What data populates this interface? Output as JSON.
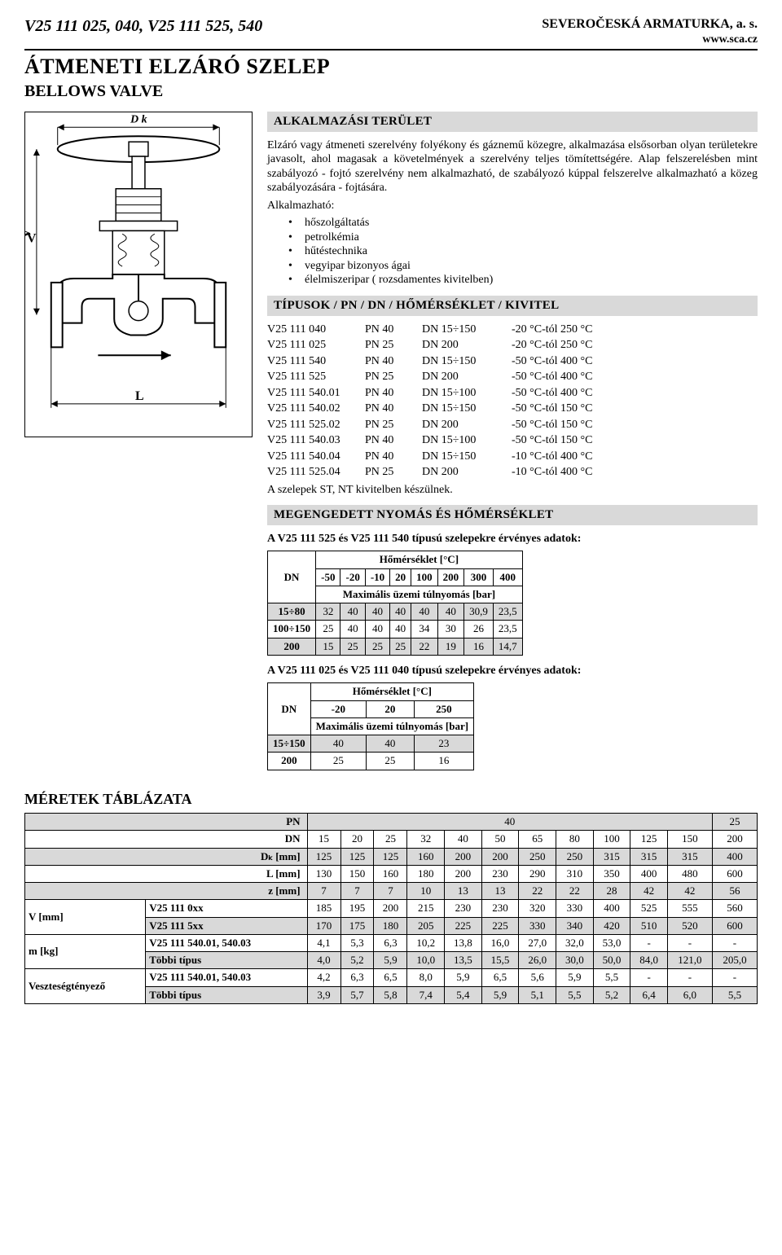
{
  "header": {
    "model": "V25 111 025, 040, V25 111 525, 540",
    "company": "SEVEROČESKÁ ARMATURKA, a. s.",
    "url": "www.sca.cz",
    "title_hu": "ÁTMENETI ELZÁRÓ SZELEP",
    "title_en": "BELLOWS VALVE"
  },
  "diagram": {
    "labels": {
      "dk": "D k",
      "v": "V",
      "l": "L"
    }
  },
  "app_area": {
    "heading": "ALKALMAZÁSI TERÜLET",
    "para": "Elzáró vagy átmeneti szerelvény folyékony és gáznemű közegre, alkalmazása elsősorban olyan területekre javasolt, ahol magasak a követelmények a szerelvény teljes tömítettségére. Alap felszerelésben mint szabályozó - fojtó szerelvény nem alkalmazható, de szabályozó kúppal felszerelve alkalmazható a közeg szabályozására - fojtására.",
    "list_intro": "Alkalmazható:",
    "bullets": [
      "hőszolgáltatás",
      "petrolkémia",
      "hűtéstechnika",
      "vegyipar bizonyos ágai",
      "élelmiszeripar ( rozsdamentes kivitelben)"
    ]
  },
  "types": {
    "heading": "TÍPUSOK / PN / DN / HŐMÉRSÉKLET / KIVITEL",
    "rows": [
      [
        "V25 111 040",
        "PN  40",
        "DN 15÷150",
        "-20 °C-tól 250 °C"
      ],
      [
        "V25 111 025",
        "PN  25",
        "DN 200",
        "-20 °C-tól 250 °C"
      ],
      [
        "V25 111 540",
        "PN  40",
        "DN 15÷150",
        "-50 °C-tól 400 °C"
      ],
      [
        "V25 111 525",
        "PN  25",
        "DN 200",
        "-50 °C-tól 400 °C"
      ],
      [
        "V25 111 540.01",
        "PN  40",
        "DN 15÷100",
        "-50 °C-tól 400 °C"
      ],
      [
        "V25 111 540.02",
        "PN  40",
        "DN 15÷150",
        "-50 °C-tól 150 °C"
      ],
      [
        "V25 111 525.02",
        "PN  25",
        "DN 200",
        "-50 °C-tól 150 °C"
      ],
      [
        "V25 111 540.03",
        "PN  40",
        "DN 15÷100",
        "-50 °C-tól 150 °C"
      ],
      [
        "V25 111 540.04",
        "PN  40",
        "DN 15÷150",
        "-10 °C-tól 400 °C"
      ],
      [
        "V25 111 525.04",
        "PN  25",
        "DN 200",
        "-10 °C-tól 400 °C"
      ]
    ],
    "note": "A szelepek ST, NT kivitelben készülnek."
  },
  "pressure": {
    "heading": "MEGENGEDETT NYOMÁS ÉS HŐMÉRSÉKLET",
    "sub1": "A V25 111 525 és V25 111 540 típusú szelepekre érvényes adatok:",
    "t1": {
      "dn_label": "DN",
      "temp_label": "Hőmérséklet [°C]",
      "press_label": "Maximális üzemi túlnyomás [bar]",
      "temps": [
        "-50",
        "-20",
        "-10",
        "20",
        "100",
        "200",
        "300",
        "400"
      ],
      "rows": [
        {
          "dn": "15÷80",
          "vals": [
            "32",
            "40",
            "40",
            "40",
            "40",
            "40",
            "30,9",
            "23,5"
          ]
        },
        {
          "dn": "100÷150",
          "vals": [
            "25",
            "40",
            "40",
            "40",
            "34",
            "30",
            "26",
            "23,5"
          ]
        },
        {
          "dn": "200",
          "vals": [
            "15",
            "25",
            "25",
            "25",
            "22",
            "19",
            "16",
            "14,7"
          ]
        }
      ]
    },
    "sub2": "A V25 111 025 és V25 111 040 típusú szelepekre érvényes adatok:",
    "t2": {
      "dn_label": "DN",
      "temp_label": "Hőmérséklet [°C]",
      "press_label": "Maximális üzemi túlnyomás [bar]",
      "temps": [
        "-20",
        "20",
        "250"
      ],
      "rows": [
        {
          "dn": "15÷150",
          "vals": [
            "40",
            "40",
            "23"
          ]
        },
        {
          "dn": "200",
          "vals": [
            "25",
            "25",
            "16"
          ]
        }
      ]
    }
  },
  "dims": {
    "heading": "MÉRETEK TÁBLÁZATA",
    "col_headers": {
      "pn": "PN",
      "dn": "DN",
      "pn40_span": "40",
      "pn25": "25",
      "dns": [
        "15",
        "20",
        "25",
        "32",
        "40",
        "50",
        "65",
        "80",
        "100",
        "125",
        "150",
        "200"
      ]
    },
    "rows": [
      {
        "label": "Dₖ [mm]",
        "side": "",
        "vals": [
          "125",
          "125",
          "125",
          "160",
          "200",
          "200",
          "250",
          "250",
          "315",
          "315",
          "315",
          "400"
        ],
        "shade": true
      },
      {
        "label": "L [mm]",
        "side": "",
        "vals": [
          "130",
          "150",
          "160",
          "180",
          "200",
          "230",
          "290",
          "310",
          "350",
          "400",
          "480",
          "600"
        ],
        "shade": false
      },
      {
        "label": "z [mm]",
        "side": "",
        "vals": [
          "7",
          "7",
          "7",
          "10",
          "13",
          "13",
          "22",
          "22",
          "28",
          "42",
          "42",
          "56"
        ],
        "shade": true
      }
    ],
    "vrows": {
      "side": "V [mm]",
      "lines": [
        {
          "label": "V25 111 0xx",
          "vals": [
            "185",
            "195",
            "200",
            "215",
            "230",
            "230",
            "320",
            "330",
            "400",
            "525",
            "555",
            "560"
          ],
          "shade": false
        },
        {
          "label": "V25 111 5xx",
          "vals": [
            "170",
            "175",
            "180",
            "205",
            "225",
            "225",
            "330",
            "340",
            "420",
            "510",
            "520",
            "600"
          ],
          "shade": true
        }
      ]
    },
    "mrows": {
      "side": "m [kg]",
      "lines": [
        {
          "label": "V25 111 540.01, 540.03",
          "vals": [
            "4,1",
            "5,3",
            "6,3",
            "10,2",
            "13,8",
            "16,0",
            "27,0",
            "32,0",
            "53,0",
            "-",
            "-",
            "-"
          ],
          "shade": false
        },
        {
          "label": "Többi típus",
          "vals": [
            "4,0",
            "5,2",
            "5,9",
            "10,0",
            "13,5",
            "15,5",
            "26,0",
            "30,0",
            "50,0",
            "84,0",
            "121,0",
            "205,0"
          ],
          "shade": true
        }
      ]
    },
    "lossrows": {
      "side": "Veszteségtényező",
      "lines": [
        {
          "label": "V25 111 540.01, 540.03",
          "vals": [
            "4,2",
            "6,3",
            "6,5",
            "8,0",
            "5,9",
            "6,5",
            "5,6",
            "5,9",
            "5,5",
            "-",
            "-",
            "-"
          ],
          "shade": false
        },
        {
          "label": "Többi típus",
          "vals": [
            "3,9",
            "5,7",
            "5,8",
            "7,4",
            "5,4",
            "5,9",
            "5,1",
            "5,5",
            "5,2",
            "6,4",
            "6,0",
            "5,5"
          ],
          "shade": true
        }
      ]
    }
  },
  "colors": {
    "grey": "#d9d9d9",
    "rule": "#000000"
  }
}
